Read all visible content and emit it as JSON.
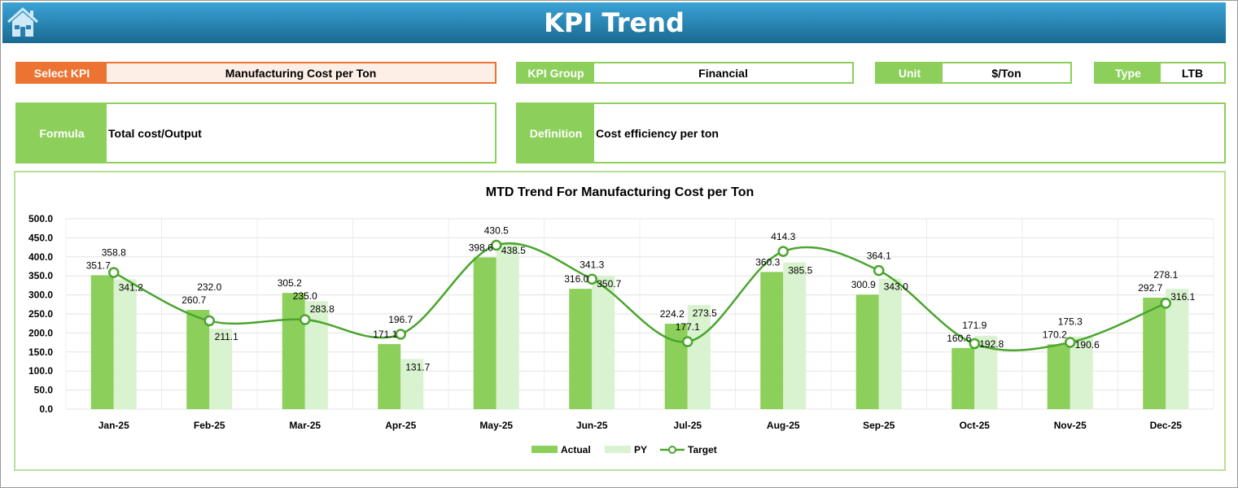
{
  "header": {
    "title": "KPI Trend",
    "home_icon": "home-icon"
  },
  "fields": {
    "select_kpi": {
      "label": "Select KPI",
      "value": "Manufacturing Cost per Ton"
    },
    "kpi_group": {
      "label": "KPI Group",
      "value": "Financial"
    },
    "unit": {
      "label": "Unit",
      "value": "$/Ton"
    },
    "type": {
      "label": "Type",
      "value": "LTB"
    },
    "formula": {
      "label": "Formula",
      "value": "Total cost/Output"
    },
    "definition": {
      "label": "Definition",
      "value": "Cost efficiency per ton"
    }
  },
  "colors": {
    "actual": "#8ccf5a",
    "py": "#d9f2cf",
    "target": "#4aa52e",
    "header": "#1f7aa6",
    "select": "#ec7332"
  },
  "chart_data": {
    "type": "bar",
    "title": "MTD Trend For Manufacturing Cost per Ton",
    "categories": [
      "Jan-25",
      "Feb-25",
      "Mar-25",
      "Apr-25",
      "May-25",
      "Jun-25",
      "Jul-25",
      "Aug-25",
      "Sep-25",
      "Oct-25",
      "Nov-25",
      "Dec-25"
    ],
    "ylim": [
      0,
      500
    ],
    "yticks": [
      "0.0",
      "50.0",
      "100.0",
      "150.0",
      "200.0",
      "250.0",
      "300.0",
      "350.0",
      "400.0",
      "450.0",
      "500.0"
    ],
    "grid": true,
    "legend": "bottom",
    "series": [
      {
        "name": "Actual",
        "type": "bar",
        "values": [
          351.7,
          260.7,
          305.2,
          171.1,
          398.6,
          316.0,
          224.2,
          360.3,
          300.9,
          160.6,
          170.2,
          292.7
        ]
      },
      {
        "name": "PY",
        "type": "bar",
        "values": [
          341.2,
          211.1,
          283.8,
          131.7,
          438.5,
          350.7,
          273.5,
          385.5,
          343.0,
          192.8,
          190.6,
          316.1
        ]
      },
      {
        "name": "Target",
        "type": "line",
        "values": [
          358.8,
          232.0,
          235.0,
          196.7,
          430.5,
          341.3,
          177.1,
          414.3,
          364.1,
          171.9,
          175.3,
          278.1
        ]
      }
    ]
  }
}
